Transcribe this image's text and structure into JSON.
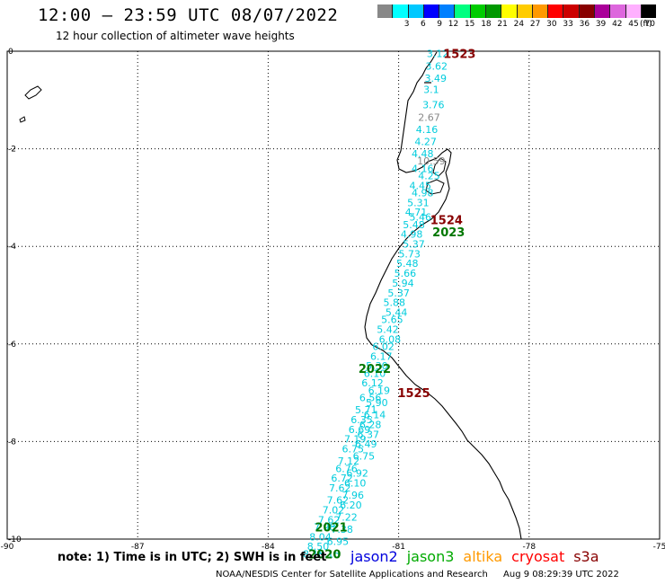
{
  "header": {
    "title": "12:00 – 23:59 UTC 08/07/2022",
    "subtitle": "12 hour collection of altimeter wave heights"
  },
  "color_scale": {
    "colors": [
      "#888888",
      "#00ffff",
      "#00c8ff",
      "#0000ff",
      "#0080ff",
      "#00ff80",
      "#00cc00",
      "#009900",
      "#ffff00",
      "#ffcc00",
      "#ff9900",
      "#ff0000",
      "#cc0000",
      "#880000",
      "#aa0099",
      "#dd66dd",
      "#ffb0ff",
      "#000000"
    ],
    "labels": [
      "3",
      "6",
      "9",
      "12",
      "15",
      "18",
      "21",
      "24",
      "27",
      "30",
      "33",
      "36",
      "39",
      "42",
      "45",
      "70"
    ],
    "unit": "(ft)"
  },
  "axes": {
    "x_ticks": [
      "-90",
      "-87",
      "-84",
      "-81",
      "-78",
      "-75"
    ],
    "y_ticks": [
      "0",
      "-2",
      "-4",
      "-6",
      "-8",
      "-10"
    ]
  },
  "track": {
    "color": "#00ccdd",
    "swh": [
      {
        "v": "3.12",
        "lon": -80.1,
        "lat": -0.05
      },
      {
        "v": "3.62",
        "lon": -80.13,
        "lat": -0.3
      },
      {
        "v": "3.49",
        "lon": -80.15,
        "lat": -0.55
      },
      {
        "v": "3.1",
        "lon": -80.25,
        "lat": -0.78
      },
      {
        "v": "3.76",
        "lon": -80.2,
        "lat": -1.1
      },
      {
        "v": "2.67",
        "lon": -80.3,
        "lat": -1.35
      },
      {
        "v": "4.16",
        "lon": -80.35,
        "lat": -1.6
      },
      {
        "v": "4.27",
        "lon": -80.38,
        "lat": -1.85
      },
      {
        "v": "4.48",
        "lon": -80.45,
        "lat": -2.1
      },
      {
        "v": "10.59",
        "lon": -80.25,
        "lat": -2.25
      },
      {
        "v": "4.16",
        "lon": -80.45,
        "lat": -2.4
      },
      {
        "v": "4.25",
        "lon": -80.3,
        "lat": -2.55
      },
      {
        "v": "4.45",
        "lon": -80.5,
        "lat": -2.75
      },
      {
        "v": "4.98",
        "lon": -80.45,
        "lat": -2.9
      },
      {
        "v": "5.31",
        "lon": -80.55,
        "lat": -3.1
      },
      {
        "v": "4.71",
        "lon": -80.6,
        "lat": -3.3
      },
      {
        "v": "5.46",
        "lon": -80.5,
        "lat": -3.4
      },
      {
        "v": "5.48",
        "lon": -80.65,
        "lat": -3.55
      },
      {
        "v": "4.98",
        "lon": -80.7,
        "lat": -3.75
      },
      {
        "v": "5.37",
        "lon": -80.65,
        "lat": -3.95
      },
      {
        "v": "5.73",
        "lon": -80.75,
        "lat": -4.15
      },
      {
        "v": "5.48",
        "lon": -80.8,
        "lat": -4.35
      },
      {
        "v": "5.66",
        "lon": -80.85,
        "lat": -4.55
      },
      {
        "v": "5.94",
        "lon": -80.9,
        "lat": -4.75
      },
      {
        "v": "5.37",
        "lon": -81.0,
        "lat": -4.95
      },
      {
        "v": "5.88",
        "lon": -81.1,
        "lat": -5.15
      },
      {
        "v": "5.44",
        "lon": -81.05,
        "lat": -5.35
      },
      {
        "v": "5.65",
        "lon": -81.15,
        "lat": -5.5
      },
      {
        "v": "5.42",
        "lon": -81.25,
        "lat": -5.7
      },
      {
        "v": "6.08",
        "lon": -81.2,
        "lat": -5.9
      },
      {
        "v": "6.02",
        "lon": -81.35,
        "lat": -6.05
      },
      {
        "v": "6.17",
        "lon": -81.4,
        "lat": -6.25
      },
      {
        "v": "5.30",
        "lon": -81.5,
        "lat": -6.45
      },
      {
        "v": "6.10",
        "lon": -81.55,
        "lat": -6.6
      },
      {
        "v": "6.12",
        "lon": -81.6,
        "lat": -6.8
      },
      {
        "v": "6.19",
        "lon": -81.45,
        "lat": -6.95
      },
      {
        "v": "6.56",
        "lon": -81.65,
        "lat": -7.1
      },
      {
        "v": "5.90",
        "lon": -81.5,
        "lat": -7.2
      },
      {
        "v": "5.71",
        "lon": -81.75,
        "lat": -7.35
      },
      {
        "v": "6.14",
        "lon": -81.55,
        "lat": -7.45
      },
      {
        "v": "6.35",
        "lon": -81.85,
        "lat": -7.55
      },
      {
        "v": "6.28",
        "lon": -81.65,
        "lat": -7.65
      },
      {
        "v": "6.69",
        "lon": -81.9,
        "lat": -7.75
      },
      {
        "v": "6.37",
        "lon": -81.7,
        "lat": -7.85
      },
      {
        "v": "7.19",
        "lon": -82.0,
        "lat": -7.95
      },
      {
        "v": "6.49",
        "lon": -81.75,
        "lat": -8.05
      },
      {
        "v": "6.75",
        "lon": -82.05,
        "lat": -8.15
      },
      {
        "v": "6.75",
        "lon": -81.8,
        "lat": -8.3
      },
      {
        "v": "7.12",
        "lon": -82.15,
        "lat": -8.4
      },
      {
        "v": "6.76",
        "lon": -82.2,
        "lat": -8.55
      },
      {
        "v": "6.92",
        "lon": -81.95,
        "lat": -8.65
      },
      {
        "v": "6.72",
        "lon": -82.3,
        "lat": -8.75
      },
      {
        "v": "6.10",
        "lon": -82.0,
        "lat": -8.85
      },
      {
        "v": "7.62",
        "lon": -82.35,
        "lat": -8.95
      },
      {
        "v": "7.96",
        "lon": -82.05,
        "lat": -9.1
      },
      {
        "v": "7.62",
        "lon": -82.4,
        "lat": -9.2
      },
      {
        "v": "6.20",
        "lon": -82.1,
        "lat": -9.3
      },
      {
        "v": "7.02",
        "lon": -82.5,
        "lat": -9.4
      },
      {
        "v": "7.22",
        "lon": -82.2,
        "lat": -9.55
      },
      {
        "v": "7.62",
        "lon": -82.6,
        "lat": -9.6
      },
      {
        "v": "7.98",
        "lon": -82.7,
        "lat": -9.75
      },
      {
        "v": "7.38",
        "lon": -82.3,
        "lat": -9.8
      },
      {
        "v": "8.04",
        "lon": -82.8,
        "lat": -9.95
      },
      {
        "v": "6.95",
        "lon": -82.4,
        "lat": -10.05
      },
      {
        "v": "8.50",
        "lon": -82.85,
        "lat": -10.15
      },
      {
        "v": "8.15",
        "lon": -82.95,
        "lat": -10.3
      },
      {
        "v": "8.15",
        "lon": -82.6,
        "lat": -10.3
      }
    ]
  },
  "time_labels": [
    {
      "text": "1523",
      "color": "#880000",
      "lon": -79.6,
      "lat": -0.05
    },
    {
      "text": "1524",
      "color": "#880000",
      "lon": -79.9,
      "lat": -3.45
    },
    {
      "text": "2023",
      "color": "#007700",
      "lon": -79.85,
      "lat": -3.7
    },
    {
      "text": "2022",
      "color": "#007700",
      "lon": -81.55,
      "lat": -6.5
    },
    {
      "text": "1525",
      "color": "#880000",
      "lon": -80.65,
      "lat": -7.0
    },
    {
      "text": "2021",
      "color": "#007700",
      "lon": -82.55,
      "lat": -9.75
    },
    {
      "text": "2020",
      "color": "#007700",
      "lon": -82.7,
      "lat": -10.3
    }
  ],
  "note": "note:  1) Time is in UTC;  2) SWH is in feet",
  "satellites": [
    {
      "name": "jason2",
      "color": "#0000dd"
    },
    {
      "name": "jason3",
      "color": "#00aa00"
    },
    {
      "name": "altika",
      "color": "#ff9900"
    },
    {
      "name": "cryosat",
      "color": "#ff0000"
    },
    {
      "name": "s3a",
      "color": "#880000"
    }
  ],
  "footer": {
    "credit": "NOAA/NESDIS Center for Satellite Applications and Research",
    "timestamp": "Aug  9 08:29:39 UTC 2022"
  }
}
